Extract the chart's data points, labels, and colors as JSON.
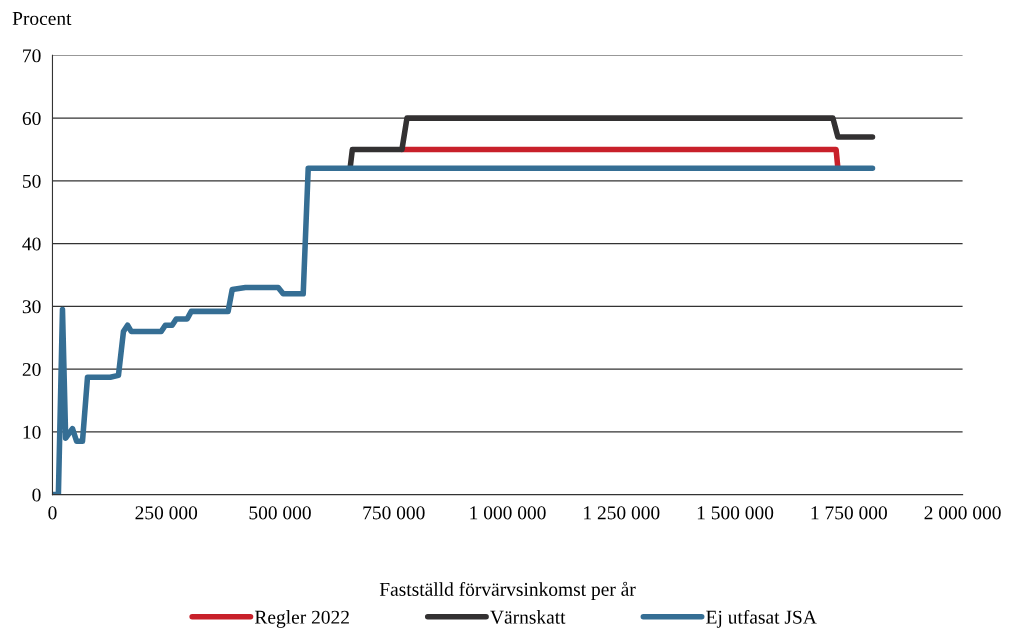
{
  "chart_data": {
    "type": "line",
    "ylabel": "Procent",
    "xlabel": "Fastställd förvärvsinkomst per år",
    "xlim": [
      0,
      2000000
    ],
    "ylim": [
      0,
      70
    ],
    "xticks": [
      0,
      {
        "value": 250000,
        "label": "250 000"
      },
      {
        "value": 500000,
        "label": "500 000"
      },
      {
        "value": 750000,
        "label": "750 000"
      },
      {
        "value": 1000000,
        "label": "1 000 000"
      },
      {
        "value": 1250000,
        "label": "1 250 000"
      },
      {
        "value": 1500000,
        "label": "1 500 000"
      },
      {
        "value": 1750000,
        "label": "1 750 000"
      },
      {
        "value": 2000000,
        "label": "2 000 000"
      }
    ],
    "yticks": [
      0,
      10,
      20,
      30,
      40,
      50,
      60,
      70
    ],
    "grid": "y",
    "legend": "bottom",
    "line_style": "solid",
    "marker": "none",
    "series": [
      {
        "name": "Regler 2022",
        "color": "#c8202a",
        "x": [
          768000,
          1722000,
          1726000
        ],
        "values": [
          55,
          55,
          52
        ]
      },
      {
        "name": "Värnskatt",
        "color": "#333132",
        "x": [
          654000,
          659000,
          768000,
          779000,
          1715000,
          1726000,
          1802000
        ],
        "values": [
          52,
          55,
          55,
          60,
          60,
          57,
          57
        ]
      },
      {
        "name": "Ej utfasat JSA",
        "color": "#356e94",
        "x": [
          0,
          13000,
          22000,
          29000,
          44000,
          53000,
          66000,
          77000,
          127000,
          145000,
          156000,
          165000,
          173000,
          239000,
          248000,
          263000,
          272000,
          296000,
          305000,
          386000,
          395000,
          424000,
          496000,
          507000,
          551000,
          562000,
          1802000
        ],
        "values": [
          0,
          0,
          29.5,
          9,
          10.5,
          8.5,
          8.5,
          18.7,
          18.7,
          19,
          26,
          27,
          26,
          26,
          27,
          27,
          28,
          28,
          29.2,
          29.2,
          32.7,
          33,
          33,
          32,
          32,
          52,
          52
        ]
      }
    ]
  }
}
